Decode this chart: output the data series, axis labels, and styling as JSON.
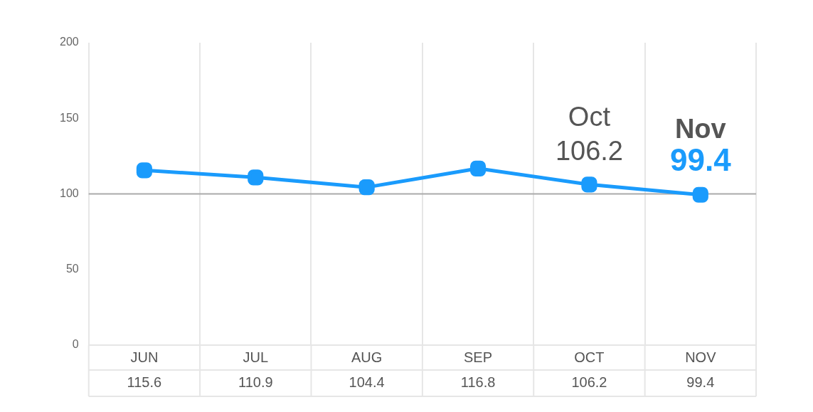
{
  "chart_data": {
    "type": "line",
    "categories": [
      "JUN",
      "JUL",
      "AUG",
      "SEP",
      "OCT",
      "NOV"
    ],
    "values": [
      115.6,
      110.9,
      104.4,
      116.8,
      106.2,
      99.4
    ],
    "color": "#1a9bfc",
    "ylim": [
      0,
      200
    ],
    "yticks": [
      0,
      50,
      100,
      150,
      200
    ],
    "grid": "x",
    "marker": "square",
    "line_style": "solid",
    "data_labels": true,
    "legend": false,
    "ref_lines": [
      {
        "axis": "y",
        "value": 100,
        "color": "#aaaaaa"
      }
    ],
    "annotations": [
      {
        "text": "Oct\n106.2",
        "x": "OCT",
        "y": 106.2
      },
      {
        "text": "Nov\n99.4",
        "x": "NOV",
        "y": 99.4
      }
    ]
  }
}
